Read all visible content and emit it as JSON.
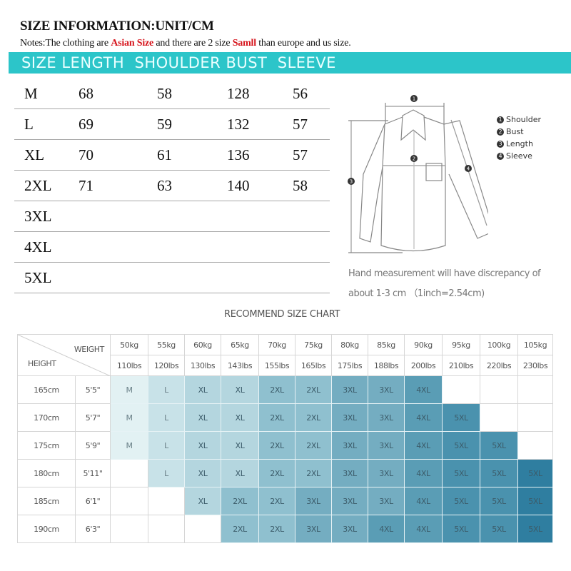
{
  "header": {
    "title": "SIZE INFORMATION:UNIT/CM",
    "notes_prefix": "Notes:The clothing are ",
    "notes_red1": "Asian Size",
    "notes_mid": " and there are 2 size ",
    "notes_red2": "Samll",
    "notes_suffix": " than europe and us size.",
    "bar_label": "SIZE LENGTH  SHOULDER BUST  SLEEVE",
    "bar_color": "#2cc5c9",
    "accent_red": "#d6141c"
  },
  "size_table": {
    "columns": [
      "SIZE",
      "LENGTH",
      "SHOULDER",
      "BUST",
      "SLEEVE"
    ],
    "rows": [
      {
        "size": "M",
        "length": "68",
        "shoulder": "58",
        "bust": "128",
        "sleeve": "56"
      },
      {
        "size": "L",
        "length": "69",
        "shoulder": "59",
        "bust": "132",
        "sleeve": "57"
      },
      {
        "size": "XL",
        "length": "70",
        "shoulder": "61",
        "bust": "136",
        "sleeve": "57"
      },
      {
        "size": "2XL",
        "length": "71",
        "shoulder": "63",
        "bust": "140",
        "sleeve": "58"
      },
      {
        "size": "3XL",
        "length": "",
        "shoulder": "",
        "bust": "",
        "sleeve": ""
      },
      {
        "size": "4XL",
        "length": "",
        "shoulder": "",
        "bust": "",
        "sleeve": ""
      },
      {
        "size": "5XL",
        "length": "",
        "shoulder": "",
        "bust": "",
        "sleeve": ""
      }
    ]
  },
  "diagram": {
    "icon": "shirt-measurement-diagram",
    "markers": [
      "1",
      "2",
      "3",
      "4"
    ],
    "legend": [
      {
        "num": "1",
        "label": "Shoulder"
      },
      {
        "num": "2",
        "label": "Bust"
      },
      {
        "num": "3",
        "label": "Length"
      },
      {
        "num": "4",
        "label": "Sleeve"
      }
    ],
    "note_line1": "Hand measurement will have discrepancy of",
    "note_line2": "about 1-3 cm （1inch=2.54cm)"
  },
  "recommend": {
    "title": "RECOMMEND SIZE CHART",
    "weight_label": "WEIGHT",
    "height_label": "HEIGHT",
    "kg": [
      "50kg",
      "55kg",
      "60kg",
      "65kg",
      "70kg",
      "75kg",
      "80kg",
      "85kg",
      "90kg",
      "95kg",
      "100kg",
      "105kg"
    ],
    "lbs": [
      "110lbs",
      "120lbs",
      "130lbs",
      "143lbs",
      "155lbs",
      "165lbs",
      "175lbs",
      "188lbs",
      "200lbs",
      "210lbs",
      "220lbs",
      "230lbs"
    ],
    "rows": [
      {
        "cm": "165cm",
        "ft": "5'5\"",
        "sizes": [
          "M",
          "L",
          "XL",
          "XL",
          "2XL",
          "2XL",
          "3XL",
          "3XL",
          "4XL",
          "",
          "",
          ""
        ]
      },
      {
        "cm": "170cm",
        "ft": "5'7\"",
        "sizes": [
          "M",
          "L",
          "XL",
          "XL",
          "2XL",
          "2XL",
          "3XL",
          "3XL",
          "4XL",
          "5XL",
          "",
          ""
        ]
      },
      {
        "cm": "175cm",
        "ft": "5'9\"",
        "sizes": [
          "M",
          "L",
          "XL",
          "XL",
          "2XL",
          "2XL",
          "3XL",
          "3XL",
          "4XL",
          "5XL",
          "5XL",
          ""
        ]
      },
      {
        "cm": "180cm",
        "ft": "5'11\"",
        "sizes": [
          "",
          "L",
          "XL",
          "XL",
          "2XL",
          "2XL",
          "3XL",
          "3XL",
          "4XL",
          "5XL",
          "5XL",
          "5XL"
        ]
      },
      {
        "cm": "185cm",
        "ft": "6'1\"",
        "sizes": [
          "",
          "",
          "XL",
          "2XL",
          "2XL",
          "3XL",
          "3XL",
          "3XL",
          "4XL",
          "5XL",
          "5XL",
          "5XL"
        ]
      },
      {
        "cm": "190cm",
        "ft": "6'3\"",
        "sizes": [
          "",
          "",
          "",
          "2XL",
          "2XL",
          "3XL",
          "3XL",
          "4XL",
          "4XL",
          "5XL",
          "5XL",
          "5XL"
        ]
      }
    ],
    "size_colors": {
      "M": "#e2f1f3",
      "L": "#c8e2e8",
      "XL": "#b4d6df",
      "2XL": "#8fc0cf",
      "3XL": "#74adc1",
      "4XL": "#5a9db5",
      "5XL": "#4a92ae",
      "5XL_dark": "#2f7ea0"
    }
  }
}
